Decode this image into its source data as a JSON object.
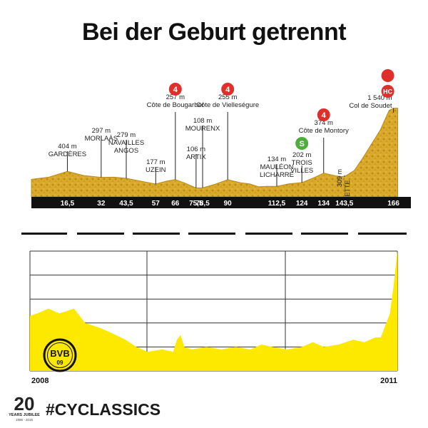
{
  "title": "Bei der Geburt getrennt",
  "footer": {
    "hashtag": "#CYCLASSICS",
    "jubilee_number": "20",
    "jubilee_text": "YEARS JUBILEE",
    "jubilee_years": "1996 - 2015"
  },
  "chart_data": [
    {
      "type": "area",
      "subtype": "stage-elevation-profile",
      "xlabel": "",
      "ylabel": "",
      "xlim": [
        0,
        166
      ],
      "ticks": [
        "16,5",
        "32",
        "43,5",
        "57",
        "66",
        "75,5",
        "78,5",
        "90",
        "112,5",
        "124",
        "134",
        "143,5",
        "166"
      ],
      "tick_km": [
        16.5,
        32,
        43.5,
        57,
        66,
        75.5,
        78.5,
        90,
        112.5,
        124,
        134,
        143.5,
        166
      ],
      "profile": {
        "km": [
          0,
          8,
          16.5,
          24,
          32,
          38,
          43.5,
          50,
          57,
          62,
          66,
          70,
          75.5,
          78.5,
          84,
          90,
          96,
          100,
          104,
          108,
          112.5,
          118,
          124,
          130,
          134,
          140,
          143.5,
          148,
          152,
          156,
          160,
          164,
          166
        ],
        "elev": [
          260,
          300,
          404,
          330,
          297,
          300,
          279,
          230,
          177,
          230,
          257,
          200,
          106,
          108,
          170,
          255,
          200,
          180,
          130,
          135,
          134,
          180,
          202,
          300,
          374,
          320,
          309,
          420,
          650,
          900,
          1150,
          1500,
          1540
        ]
      },
      "waypoints": [
        {
          "km": 16.5,
          "alt": "404 m",
          "name": "GARDÈRES"
        },
        {
          "km": 32,
          "alt": "297 m",
          "name": "MORLAÀS"
        },
        {
          "km": 43.5,
          "alt": "279 m",
          "name": "NAVAILLES ANGOS",
          "name2": "ANGOS",
          "name1": "NAVAILLES"
        },
        {
          "km": 57,
          "alt": "177 m",
          "name": "UZEIN"
        },
        {
          "km": 66,
          "alt": "257 m",
          "name": "Côte de Bougarber",
          "category": "4"
        },
        {
          "km": 75.5,
          "alt": "106 m",
          "name": "ARTIX"
        },
        {
          "km": 78.5,
          "alt": "108 m",
          "name": "MOURENX"
        },
        {
          "km": 90,
          "alt": "255 m",
          "name": "Côte de Vielleségure",
          "category": "4"
        },
        {
          "km": 112.5,
          "alt": "134 m",
          "name1": "MAULÉON",
          "name2": "LICHARRE"
        },
        {
          "km": 124,
          "alt": "202 m",
          "name1": "TROIS",
          "name2": "VILLES",
          "category": "S"
        },
        {
          "km": 134,
          "alt": "374 m",
          "name": "Côte de Montory",
          "category": "4"
        },
        {
          "km": 143.5,
          "alt": "309 m",
          "name": "ARETTE"
        },
        {
          "km": 166,
          "alt": "1 540 m",
          "name": "Col de Soudet",
          "category": "HC"
        }
      ],
      "colors": {
        "fill": "#dcae2e",
        "fill_dark": "#b98a1a",
        "axis": "#111111",
        "cat4": "#e02f2a",
        "sprint": "#4fae3b",
        "hc": "#e02f2a"
      }
    },
    {
      "type": "area",
      "subtype": "bvb-form-profile",
      "x_start_label": "2008",
      "x_end_label": "2011",
      "grid": true,
      "ylim": [
        0,
        5
      ],
      "x": [
        0,
        0.02,
        0.05,
        0.08,
        0.12,
        0.15,
        0.19,
        0.22,
        0.26,
        0.29,
        0.32,
        0.36,
        0.39,
        0.4,
        0.41,
        0.42,
        0.44,
        0.48,
        0.52,
        0.56,
        0.6,
        0.63,
        0.66,
        0.7,
        0.74,
        0.77,
        0.8,
        0.84,
        0.88,
        0.91,
        0.94,
        0.955,
        0.97,
        0.98,
        0.99,
        1.0
      ],
      "y": [
        2.3,
        2.4,
        2.6,
        2.4,
        2.6,
        2.0,
        1.8,
        1.6,
        1.3,
        1.0,
        0.8,
        0.9,
        0.8,
        1.3,
        1.5,
        1.0,
        0.9,
        1.0,
        0.9,
        1.0,
        0.9,
        1.1,
        1.0,
        0.9,
        1.0,
        1.2,
        1.0,
        1.1,
        1.3,
        1.2,
        1.4,
        1.4,
        2.0,
        2.4,
        3.6,
        5.0
      ],
      "logo": {
        "top": "BVB",
        "bottom": "09"
      },
      "colors": {
        "fill": "#fde800",
        "grid": "#333333",
        "logo_bg": "#fde800",
        "logo_fg": "#111111"
      }
    }
  ]
}
